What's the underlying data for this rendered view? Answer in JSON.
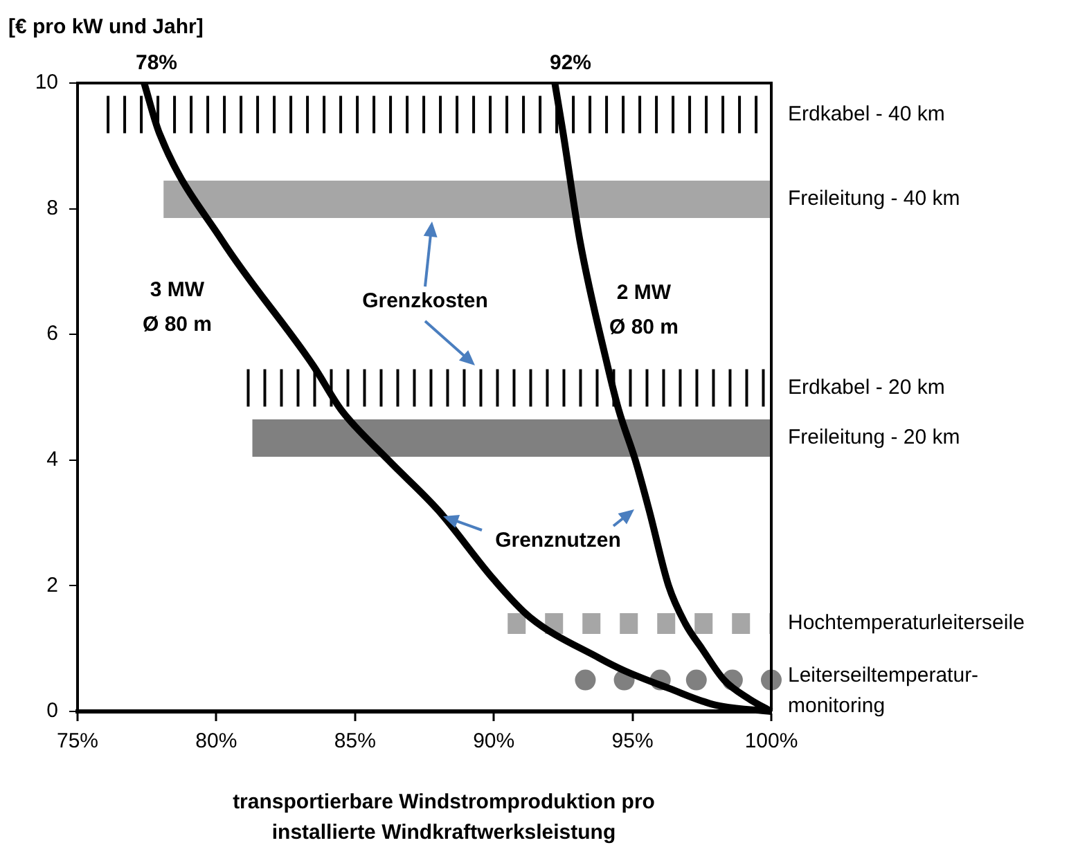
{
  "chart_data": {
    "type": "line",
    "ylabel": "[€ pro kW und Jahr]",
    "xlabel": "transportierbare Windstromproduktion pro installierte Windkraftwerksleistung",
    "xlim": [
      75,
      100
    ],
    "xticks": [
      {
        "value": 75,
        "label": "75%"
      },
      {
        "value": 80,
        "label": "80%"
      },
      {
        "value": 85,
        "label": "85%"
      },
      {
        "value": 90,
        "label": "90%"
      },
      {
        "value": 95,
        "label": "95%"
      },
      {
        "value": 100,
        "label": "100%"
      }
    ],
    "ylim": [
      0,
      10
    ],
    "yticks": [
      0,
      2,
      4,
      6,
      8,
      10
    ],
    "grid": false,
    "legend": false,
    "series": [
      {
        "color": "#000000",
        "line_style": "solid",
        "x": [
          77.4,
          77.95,
          80.2,
          83.5,
          84.5,
          86.2,
          88,
          90,
          91.3,
          93.8,
          94.7,
          96.3,
          98,
          100
        ],
        "values": [
          10,
          9.2,
          7.5,
          5.5,
          4.8,
          4,
          3.2,
          2.1,
          1.5,
          0.85,
          0.65,
          0.37,
          0.1,
          0
        ]
      },
      {
        "color": "#000000",
        "line_style": "solid",
        "x": [
          92.2,
          92.5,
          93.1,
          94.1,
          94.5,
          95.1,
          95.6,
          96.3,
          96.9,
          97.5,
          98.3,
          99.2,
          100
        ],
        "values": [
          10,
          9.2,
          7.5,
          5.5,
          4.8,
          4,
          3.2,
          2,
          1.4,
          1,
          0.5,
          0.2,
          0
        ]
      },
      {
        "type": "line",
        "name": "Erdkabel - 40 km",
        "color": "#000000",
        "line_style": "dotted",
        "x": [
          76.05,
          100
        ],
        "values": [
          9.5,
          9.5
        ]
      },
      {
        "type": "line",
        "name": "Freileitung - 40 km",
        "color": "#a6a6a6",
        "line_style": "solid",
        "x": [
          78.1,
          100
        ],
        "values": [
          8.15,
          8.15
        ]
      },
      {
        "type": "line",
        "name": "Erdkabel - 20 km",
        "color": "#000000",
        "line_style": "dotted",
        "x": [
          81.1,
          100
        ],
        "values": [
          5.15,
          5.15
        ]
      },
      {
        "type": "line",
        "name": "Freileitung - 20 km",
        "color": "#808080",
        "line_style": "solid",
        "x": [
          81.3,
          100
        ],
        "values": [
          4.35,
          4.35
        ]
      },
      {
        "type": "line",
        "name": "Hochtemperaturleiterseile",
        "color": "#a6a6a6",
        "line_style": "dashed",
        "x": [
          90.5,
          100
        ],
        "values": [
          1.4,
          1.4
        ]
      },
      {
        "type": "scatter",
        "name": "Leiterseiltemperatur-monitoring",
        "color": "#808080",
        "marker": "circle",
        "x": [
          93.3,
          94.7,
          96,
          97.3,
          98.6,
          100
        ],
        "values": [
          0.5,
          0.5,
          0.5,
          0.5,
          0.5,
          0.5
        ]
      }
    ],
    "annotations": [
      "78%",
      "92%",
      "3 MW\nØ 80 m",
      "2 MW\nØ 80 m",
      "Grenzkosten",
      "Grenznutzen"
    ]
  }
}
